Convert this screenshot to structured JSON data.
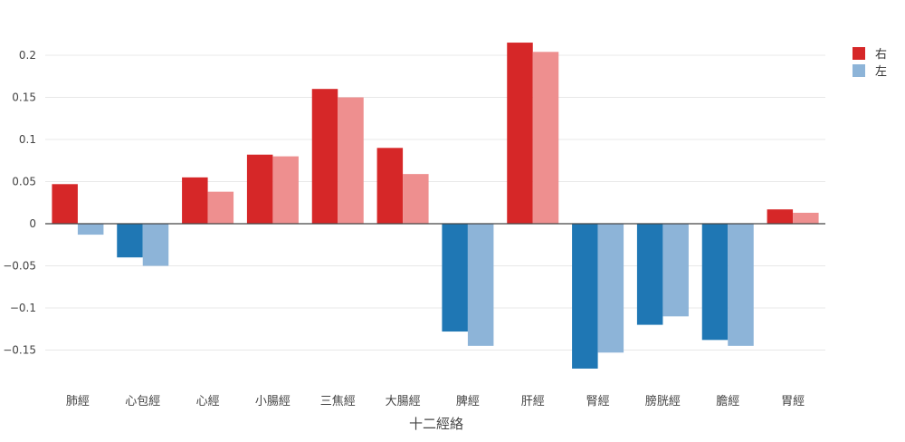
{
  "chart_data": {
    "type": "bar",
    "xlabel": "十二經絡",
    "ylabel": "",
    "ylim": [
      -0.18,
      0.235
    ],
    "yticks": [
      0.2,
      0.15,
      0.1,
      0.05,
      0,
      -0.05,
      -0.1,
      -0.15
    ],
    "ytick_labels": [
      "0.2",
      "0.15",
      "0.1",
      "0.05",
      "0",
      "−0.05",
      "−0.1",
      "−0.15"
    ],
    "grid": true,
    "legend_position": "top-right",
    "categories": [
      "肺經",
      "心包經",
      "心經",
      "小腸經",
      "三焦經",
      "大腸經",
      "脾經",
      "肝經",
      "腎經",
      "膀胱經",
      "膽經",
      "胃經"
    ],
    "series": [
      {
        "name": "右",
        "values": [
          0.047,
          -0.04,
          0.055,
          0.082,
          0.16,
          0.09,
          -0.128,
          0.215,
          -0.172,
          -0.12,
          -0.138,
          0.017
        ]
      },
      {
        "name": "左",
        "values": [
          -0.013,
          -0.05,
          0.038,
          0.08,
          0.15,
          0.059,
          -0.145,
          0.204,
          -0.153,
          -0.11,
          -0.145,
          0.013
        ]
      }
    ],
    "colors": {
      "series0_positive": "#d62728",
      "series0_negative": "#1f77b4",
      "series1_positive": "#ee8f8f",
      "series1_negative": "#8db4d8",
      "grid": "#e8e8e8",
      "zero_line": "#444444"
    }
  }
}
